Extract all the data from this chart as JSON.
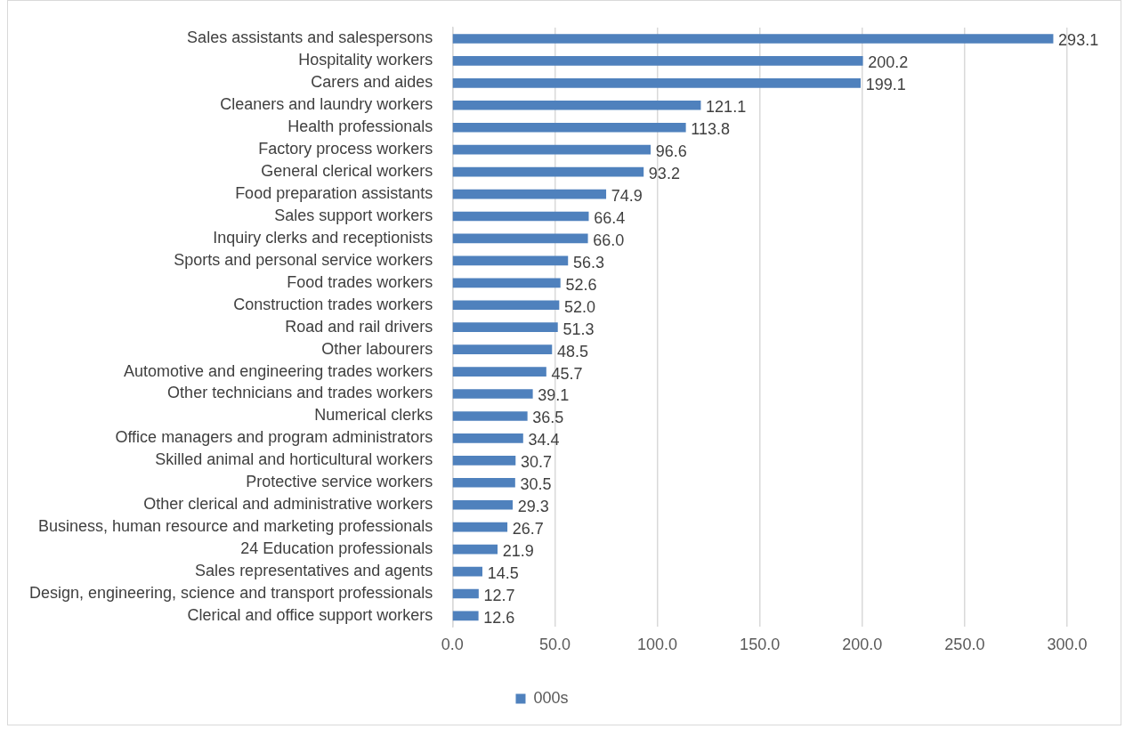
{
  "chart_data": {
    "type": "bar",
    "orientation": "horizontal",
    "categories": [
      "Sales assistants and salespersons",
      "Hospitality workers",
      "Carers and aides",
      "Cleaners and laundry workers",
      "Health professionals",
      "Factory process workers",
      "General clerical workers",
      "Food preparation assistants",
      "Sales support workers",
      "Inquiry clerks and receptionists",
      "Sports and personal service workers",
      "Food trades workers",
      "Construction trades workers",
      "Road and rail drivers",
      "Other labourers",
      "Automotive and engineering trades workers",
      "Other technicians and trades workers",
      "Numerical clerks",
      "Office managers and program administrators",
      "Skilled animal and horticultural workers",
      "Protective service workers",
      "Other clerical and administrative workers",
      "Business, human resource and marketing professionals",
      "24 Education professionals",
      "Sales representatives and agents",
      "Design, engineering, science and transport professionals",
      "Clerical and office support workers"
    ],
    "series": [
      {
        "name": "000s",
        "color": "#4f81bd",
        "values": [
          293.1,
          200.2,
          199.1,
          121.1,
          113.8,
          96.6,
          93.2,
          74.9,
          66.4,
          66.0,
          56.3,
          52.6,
          52.0,
          51.3,
          48.5,
          45.7,
          39.1,
          36.5,
          34.4,
          30.7,
          30.5,
          29.3,
          26.7,
          21.9,
          14.5,
          12.7,
          12.6
        ],
        "value_labels": [
          "293.1",
          "200.2",
          "199.1",
          "121.1",
          "113.8",
          "96.6",
          "93.2",
          "74.9",
          "66.4",
          "66.0",
          "56.3",
          "52.6",
          "52.0",
          "51.3",
          "48.5",
          "45.7",
          "39.1",
          "36.5",
          "34.4",
          "30.7",
          "30.5",
          "29.3",
          "26.7",
          "21.9",
          "14.5",
          "12.7",
          "12.6"
        ]
      }
    ],
    "xlim": [
      0,
      300
    ],
    "xticks": [
      {
        "value": 0,
        "label": "0.0"
      },
      {
        "value": 50,
        "label": "50.0"
      },
      {
        "value": 100,
        "label": "100.0"
      },
      {
        "value": 150,
        "label": "150.0"
      },
      {
        "value": 200,
        "label": "200.0"
      },
      {
        "value": 250,
        "label": "250.0"
      },
      {
        "value": 300,
        "label": "300.0"
      }
    ],
    "grid": "x",
    "legend": "bottom"
  }
}
